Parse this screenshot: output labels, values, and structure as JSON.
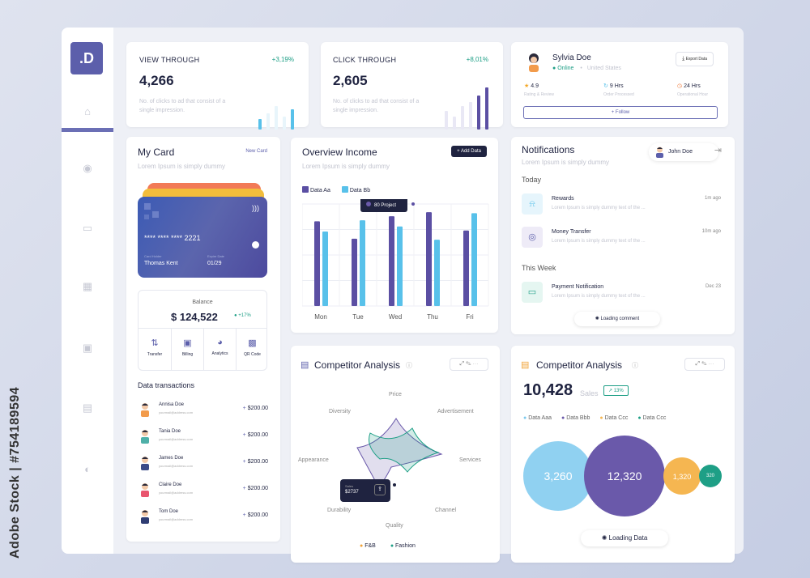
{
  "watermark": "Adobe Stock | #754189594",
  "logo": ".D",
  "view_through": {
    "title": "VIEW THROUGH",
    "value": "4,266",
    "delta": "+3,19%",
    "desc": "No. of clicks to ad that consist of a single impression.",
    "bars": [
      0.35,
      0.55,
      0.8,
      0.45,
      0.7
    ]
  },
  "click_through": {
    "title": "CLICK THROUGH",
    "value": "2,605",
    "delta": "+8,01%",
    "desc": "No. of clicks to ad that consist of a single impression.",
    "bars": [
      0.45,
      0.3,
      0.55,
      0.65,
      0.8,
      1.0
    ]
  },
  "profile": {
    "name": "Sylvia Doe",
    "status": "Online",
    "location": "United States",
    "export": "Export Data",
    "stats": [
      {
        "value": "4.9",
        "label": "Rating & Review"
      },
      {
        "value": "9",
        "unit": "Hrs",
        "label": "Order Processed"
      },
      {
        "value": "24",
        "unit": "Hrs",
        "label": "Operational Hour"
      }
    ],
    "follow": "+ Follow"
  },
  "my_card": {
    "title": "My Card",
    "action": "New Card",
    "subtitle": "Lorem Ipsum is simply dummy",
    "number": "**** **** **** 2221",
    "holder_label": "Card Holder",
    "holder": "Thomas Kent",
    "expiry_label": "Expire Date",
    "expiry": "01/29",
    "balance_label": "Balance",
    "balance": "$ 124,522",
    "balance_delta": "+17%",
    "actions": [
      "Transfer",
      "Billing",
      "Analytics",
      "QR Code"
    ]
  },
  "transactions": {
    "title": "Data transactions",
    "rows": [
      {
        "name": "Annisa Doe",
        "email": "yourmail@address.com",
        "amount": "$200.00"
      },
      {
        "name": "Tania Doe",
        "email": "yourmail@address.com",
        "amount": "$200.00"
      },
      {
        "name": "James Doe",
        "email": "yourmail@address.com",
        "amount": "$200.00"
      },
      {
        "name": "Claire Doe",
        "email": "yourmail@address.com",
        "amount": "$200.00"
      },
      {
        "name": "Tom Doe",
        "email": "yourmail@address.com",
        "amount": "$200.00"
      }
    ]
  },
  "overview": {
    "title": "Overview Income",
    "subtitle": "Lorem Ipsum is simply dummy",
    "add": "Add Data",
    "tooltip": "80 Project"
  },
  "chart_data": {
    "type": "bar",
    "title": "Overview Income",
    "categories": [
      "Mon",
      "Tue",
      "Wed",
      "Thu",
      "Fri"
    ],
    "ylim": [
      0,
      100
    ],
    "series": [
      {
        "name": "Data Aa",
        "color": "#5b4fa3",
        "values": [
          83,
          66,
          88,
          92,
          74
        ]
      },
      {
        "name": "Data Bb",
        "color": "#58c1ea",
        "values": [
          73,
          84,
          78,
          65,
          91
        ]
      }
    ]
  },
  "notifications": {
    "title": "Notifications",
    "subtitle": "Lorem Ipsum is simply dummy",
    "user": "John Doe",
    "today": "Today",
    "this_week": "This Week",
    "loading": "Loading comment",
    "items": [
      {
        "title": "Rewards",
        "time": "1m ago",
        "text": "Lorem Ipsum is simply dummy text of the ..."
      },
      {
        "title": "Money Transfer",
        "time": "10m ago",
        "text": "Lorem Ipsum is simply dummy text of the ..."
      },
      {
        "title": "Payment Notification",
        "time": "Dec 23",
        "text": "Lorem Ipsum is simply dummy text of the ..."
      }
    ]
  },
  "competitor1": {
    "title": "Competitor Analysis",
    "labels": {
      "price": "Price",
      "advertisement": "Advertisement",
      "services": "Services",
      "channel": "Channel",
      "quality": "Quality",
      "durability": "Durability",
      "appearance": "Appearance",
      "diversity": "Diversity"
    },
    "tip_label": "Sales",
    "tip_value": "$2737",
    "legend": [
      {
        "name": "F&B",
        "color": "#f0a236"
      },
      {
        "name": "Fashion",
        "color": "#1e9f86"
      }
    ]
  },
  "competitor2": {
    "title": "Competitor Analysis",
    "value": "10,428",
    "label": "Sales",
    "delta": "13%",
    "loading": "Loading Data",
    "legend": [
      {
        "name": "Data Aaa",
        "color": "#7cc9ee"
      },
      {
        "name": "Data Bbb",
        "color": "#6a59aa"
      },
      {
        "name": "Data Ccc",
        "color": "#f5b651"
      },
      {
        "name": "Data Ccc",
        "color": "#1e9f86"
      }
    ],
    "bubbles": [
      "3,260",
      "12,320",
      "1,320",
      "320"
    ]
  }
}
